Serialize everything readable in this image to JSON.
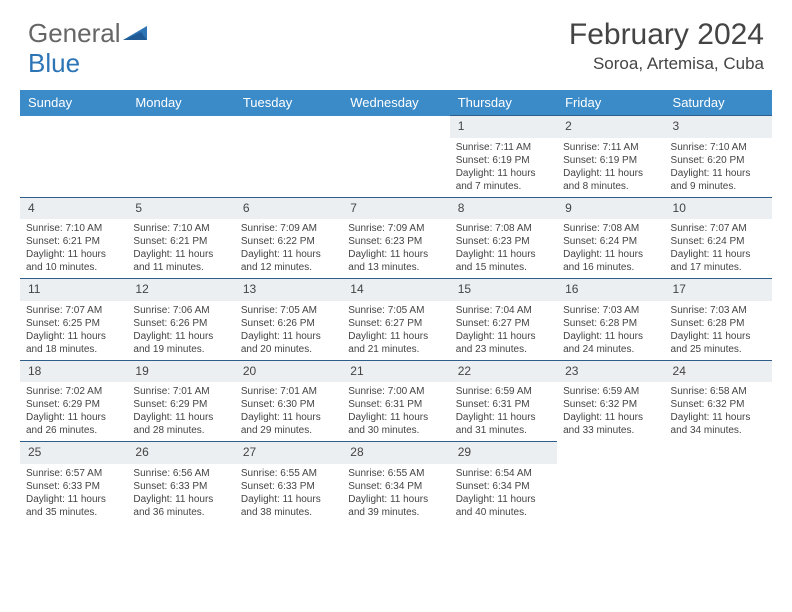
{
  "brand": {
    "part1": "General",
    "part2": "Blue"
  },
  "title": "February 2024",
  "location": "Soroa, Artemisa, Cuba",
  "colors": {
    "header_bg": "#3b8bc9",
    "daynum_bg": "#eceff2",
    "border": "#2e5d8a",
    "text": "#444444",
    "brand_blue": "#2e75b6"
  },
  "weekdays": [
    "Sunday",
    "Monday",
    "Tuesday",
    "Wednesday",
    "Thursday",
    "Friday",
    "Saturday"
  ],
  "rows": [
    [
      null,
      null,
      null,
      null,
      {
        "n": "1",
        "rise": "7:11 AM",
        "set": "6:19 PM",
        "d1": "11 hours",
        "d2": "and 7 minutes."
      },
      {
        "n": "2",
        "rise": "7:11 AM",
        "set": "6:19 PM",
        "d1": "11 hours",
        "d2": "and 8 minutes."
      },
      {
        "n": "3",
        "rise": "7:10 AM",
        "set": "6:20 PM",
        "d1": "11 hours",
        "d2": "and 9 minutes."
      }
    ],
    [
      {
        "n": "4",
        "rise": "7:10 AM",
        "set": "6:21 PM",
        "d1": "11 hours",
        "d2": "and 10 minutes."
      },
      {
        "n": "5",
        "rise": "7:10 AM",
        "set": "6:21 PM",
        "d1": "11 hours",
        "d2": "and 11 minutes."
      },
      {
        "n": "6",
        "rise": "7:09 AM",
        "set": "6:22 PM",
        "d1": "11 hours",
        "d2": "and 12 minutes."
      },
      {
        "n": "7",
        "rise": "7:09 AM",
        "set": "6:23 PM",
        "d1": "11 hours",
        "d2": "and 13 minutes."
      },
      {
        "n": "8",
        "rise": "7:08 AM",
        "set": "6:23 PM",
        "d1": "11 hours",
        "d2": "and 15 minutes."
      },
      {
        "n": "9",
        "rise": "7:08 AM",
        "set": "6:24 PM",
        "d1": "11 hours",
        "d2": "and 16 minutes."
      },
      {
        "n": "10",
        "rise": "7:07 AM",
        "set": "6:24 PM",
        "d1": "11 hours",
        "d2": "and 17 minutes."
      }
    ],
    [
      {
        "n": "11",
        "rise": "7:07 AM",
        "set": "6:25 PM",
        "d1": "11 hours",
        "d2": "and 18 minutes."
      },
      {
        "n": "12",
        "rise": "7:06 AM",
        "set": "6:26 PM",
        "d1": "11 hours",
        "d2": "and 19 minutes."
      },
      {
        "n": "13",
        "rise": "7:05 AM",
        "set": "6:26 PM",
        "d1": "11 hours",
        "d2": "and 20 minutes."
      },
      {
        "n": "14",
        "rise": "7:05 AM",
        "set": "6:27 PM",
        "d1": "11 hours",
        "d2": "and 21 minutes."
      },
      {
        "n": "15",
        "rise": "7:04 AM",
        "set": "6:27 PM",
        "d1": "11 hours",
        "d2": "and 23 minutes."
      },
      {
        "n": "16",
        "rise": "7:03 AM",
        "set": "6:28 PM",
        "d1": "11 hours",
        "d2": "and 24 minutes."
      },
      {
        "n": "17",
        "rise": "7:03 AM",
        "set": "6:28 PM",
        "d1": "11 hours",
        "d2": "and 25 minutes."
      }
    ],
    [
      {
        "n": "18",
        "rise": "7:02 AM",
        "set": "6:29 PM",
        "d1": "11 hours",
        "d2": "and 26 minutes."
      },
      {
        "n": "19",
        "rise": "7:01 AM",
        "set": "6:29 PM",
        "d1": "11 hours",
        "d2": "and 28 minutes."
      },
      {
        "n": "20",
        "rise": "7:01 AM",
        "set": "6:30 PM",
        "d1": "11 hours",
        "d2": "and 29 minutes."
      },
      {
        "n": "21",
        "rise": "7:00 AM",
        "set": "6:31 PM",
        "d1": "11 hours",
        "d2": "and 30 minutes."
      },
      {
        "n": "22",
        "rise": "6:59 AM",
        "set": "6:31 PM",
        "d1": "11 hours",
        "d2": "and 31 minutes."
      },
      {
        "n": "23",
        "rise": "6:59 AM",
        "set": "6:32 PM",
        "d1": "11 hours",
        "d2": "and 33 minutes."
      },
      {
        "n": "24",
        "rise": "6:58 AM",
        "set": "6:32 PM",
        "d1": "11 hours",
        "d2": "and 34 minutes."
      }
    ],
    [
      {
        "n": "25",
        "rise": "6:57 AM",
        "set": "6:33 PM",
        "d1": "11 hours",
        "d2": "and 35 minutes."
      },
      {
        "n": "26",
        "rise": "6:56 AM",
        "set": "6:33 PM",
        "d1": "11 hours",
        "d2": "and 36 minutes."
      },
      {
        "n": "27",
        "rise": "6:55 AM",
        "set": "6:33 PM",
        "d1": "11 hours",
        "d2": "and 38 minutes."
      },
      {
        "n": "28",
        "rise": "6:55 AM",
        "set": "6:34 PM",
        "d1": "11 hours",
        "d2": "and 39 minutes."
      },
      {
        "n": "29",
        "rise": "6:54 AM",
        "set": "6:34 PM",
        "d1": "11 hours",
        "d2": "and 40 minutes."
      },
      null,
      null
    ]
  ],
  "labels": {
    "sunrise": "Sunrise: ",
    "sunset": "Sunset: ",
    "daylight": "Daylight: "
  }
}
